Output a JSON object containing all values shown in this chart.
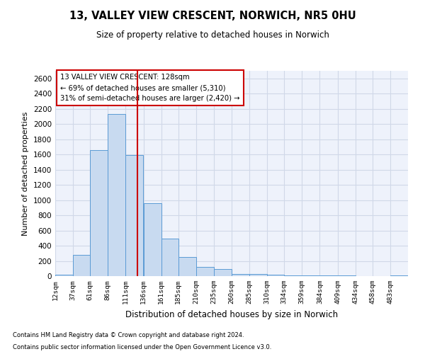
{
  "title1": "13, VALLEY VIEW CRESCENT, NORWICH, NR5 0HU",
  "title2": "Size of property relative to detached houses in Norwich",
  "xlabel": "Distribution of detached houses by size in Norwich",
  "ylabel": "Number of detached properties",
  "footnote1": "Contains HM Land Registry data © Crown copyright and database right 2024.",
  "footnote2": "Contains public sector information licensed under the Open Government Licence v3.0.",
  "annotation_line1": "13 VALLEY VIEW CRESCENT: 128sqm",
  "annotation_line2": "← 69% of detached houses are smaller (5,310)",
  "annotation_line3": "31% of semi-detached houses are larger (2,420) →",
  "property_size": 128,
  "bar_color": "#c8daf0",
  "bar_edge_color": "#5b9bd5",
  "vline_color": "#cc0000",
  "annotation_box_color": "#cc0000",
  "grid_color": "#d0d8e8",
  "background_color": "#eef2fb",
  "bins": [
    12,
    37,
    61,
    86,
    111,
    136,
    161,
    185,
    210,
    235,
    260,
    285,
    310,
    334,
    359,
    384,
    409,
    434,
    458,
    483,
    508
  ],
  "counts": [
    20,
    280,
    1660,
    2130,
    1590,
    960,
    490,
    250,
    120,
    90,
    30,
    30,
    15,
    10,
    5,
    5,
    5,
    3,
    2,
    10
  ],
  "ylim": [
    0,
    2700
  ],
  "yticks": [
    0,
    200,
    400,
    600,
    800,
    1000,
    1200,
    1400,
    1600,
    1800,
    2000,
    2200,
    2400,
    2600
  ]
}
